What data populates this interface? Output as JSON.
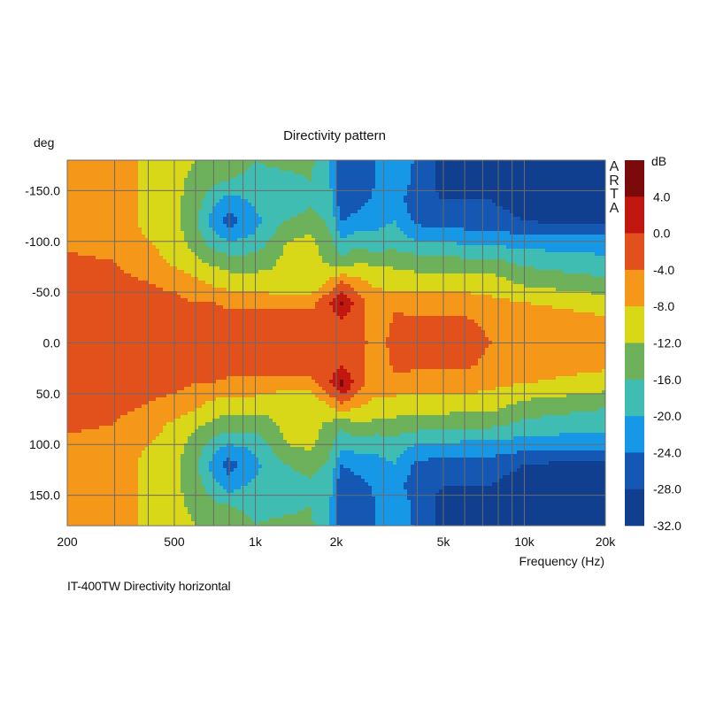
{
  "chart_data": {
    "type": "heatmap",
    "title": "Directivity pattern",
    "ylabel": "deg",
    "xlabel": "Frequency (Hz)",
    "x_scale": "log",
    "xlim": [
      200,
      20000
    ],
    "ylim": [
      -180,
      180
    ],
    "x_ticks": [
      {
        "value": 200,
        "label": "200"
      },
      {
        "value": 500,
        "label": "500"
      },
      {
        "value": 1000,
        "label": "1k"
      },
      {
        "value": 2000,
        "label": "2k"
      },
      {
        "value": 5000,
        "label": "5k"
      },
      {
        "value": 10000,
        "label": "10k"
      },
      {
        "value": 20000,
        "label": "20k"
      }
    ],
    "x_gridlines": [
      200,
      300,
      400,
      500,
      600,
      700,
      800,
      900,
      1000,
      2000,
      3000,
      4000,
      5000,
      6000,
      7000,
      8000,
      9000,
      10000,
      20000
    ],
    "y_ticks": [
      {
        "value": -150,
        "label": "-150.0"
      },
      {
        "value": -100,
        "label": "-100.0"
      },
      {
        "value": -50,
        "label": "-50.0"
      },
      {
        "value": 0,
        "label": "0.0"
      },
      {
        "value": 50,
        "label": "50.0"
      },
      {
        "value": 100,
        "label": "100.0"
      },
      {
        "value": 150,
        "label": "150.0"
      }
    ],
    "y_gridlines": [
      -150,
      -100,
      -50,
      0,
      50,
      100,
      150
    ],
    "grid": true,
    "colorbar": {
      "unit": "dB",
      "levels": [
        {
          "from": 4,
          "to": 8,
          "color": "#7d0a0a",
          "label": ""
        },
        {
          "from": 0,
          "to": 4,
          "color": "#c2170e",
          "label": "4.0"
        },
        {
          "from": -4,
          "to": 0,
          "color": "#e2501b",
          "label": "0.0"
        },
        {
          "from": -8,
          "to": -4,
          "color": "#f59719",
          "label": "-4.0"
        },
        {
          "from": -12,
          "to": -8,
          "color": "#d9d818",
          "label": "-8.0"
        },
        {
          "from": -16,
          "to": -12,
          "color": "#6db25a",
          "label": "-12.0"
        },
        {
          "from": -20,
          "to": -16,
          "color": "#40bdb3",
          "label": "-16.0"
        },
        {
          "from": -24,
          "to": -20,
          "color": "#1798e7",
          "label": "-20.0"
        },
        {
          "from": -28,
          "to": -24,
          "color": "#1458b3",
          "label": "-24.0"
        },
        {
          "from": -32,
          "to": -28,
          "color": "#0f3f8e",
          "label": "-28.0"
        }
      ],
      "bottom_label": "-32.0"
    },
    "z_approx": {
      "note": "approximate SPL (dB) relative to axis, by frequency (Hz) and angle (deg)",
      "frequencies": [
        200,
        300,
        400,
        500,
        600,
        700,
        800,
        1000,
        1300,
        1600,
        1900,
        2100,
        2400,
        2800,
        3300,
        4000,
        5000,
        6000,
        7500,
        10000,
        14000,
        20000
      ],
      "angles": [
        0,
        20,
        40,
        60,
        80,
        100,
        120,
        140,
        160,
        180
      ],
      "values": [
        [
          -2,
          -2,
          -2,
          -3,
          -3,
          -5,
          -5,
          -5,
          -6,
          -6
        ],
        [
          -2,
          -2,
          -2,
          -3,
          -4,
          -6,
          -6,
          -6,
          -6,
          -6
        ],
        [
          -2,
          -2,
          -3,
          -4,
          -6,
          -8,
          -9,
          -9,
          -9,
          -9
        ],
        [
          -2,
          -2,
          -3,
          -5,
          -9,
          -10,
          -11,
          -11,
          -11,
          -10
        ],
        [
          -2,
          -2,
          -4,
          -7,
          -11,
          -14,
          -15,
          -14,
          -13,
          -12
        ],
        [
          -2,
          -2,
          -4,
          -9,
          -13,
          -18,
          -22,
          -19,
          -15,
          -13
        ],
        [
          -2,
          -2,
          -5,
          -10,
          -14,
          -20,
          -26,
          -22,
          -16,
          -14
        ],
        [
          -2,
          -2,
          -5,
          -10,
          -14,
          -19,
          -21,
          -19,
          -17,
          -16
        ],
        [
          -1,
          -1,
          -6,
          -12,
          -11,
          -12,
          -16,
          -19,
          -17,
          -15
        ],
        [
          -1,
          -1,
          -6,
          -12,
          -10,
          -11,
          -14,
          -17,
          -16,
          -15
        ],
        [
          -3,
          -2,
          0,
          -7,
          -13,
          -15,
          -17,
          -19,
          -20,
          -20
        ],
        [
          -3,
          -1,
          5,
          -4,
          -15,
          -19,
          -24,
          -28,
          -27,
          -26
        ],
        [
          -3,
          -2,
          -2,
          -7,
          -12,
          -18,
          -22,
          -26,
          -27,
          -27
        ],
        [
          -5,
          -8,
          -6,
          -9,
          -13,
          -19,
          -21,
          -23,
          -24,
          -24
        ],
        [
          -3,
          -3,
          -5,
          -10,
          -13,
          -18,
          -20,
          -22,
          -20,
          -20
        ],
        [
          -2,
          -3,
          -6,
          -10,
          -14,
          -20,
          -25,
          -27,
          -26,
          -25
        ],
        [
          -3,
          -3,
          -6,
          -10,
          -14,
          -20,
          -26,
          -28,
          -29,
          -29
        ],
        [
          -2,
          -3,
          -6,
          -10,
          -15,
          -21,
          -26,
          -28,
          -29,
          -30
        ],
        [
          -4,
          -5,
          -7,
          -10,
          -15,
          -21,
          -26,
          -28,
          -29,
          -30
        ],
        [
          -4,
          -5,
          -8,
          -13,
          -17,
          -22,
          -28,
          -30,
          -30,
          -30
        ],
        [
          -5,
          -6,
          -9,
          -14,
          -18,
          -22,
          -29,
          -30,
          -30,
          -30
        ],
        [
          -5,
          -7,
          -10,
          -15,
          -19,
          -22,
          -29,
          -30,
          -30,
          -30
        ]
      ]
    }
  },
  "brand_text": "A R T A",
  "caption": "IT-400TW Directivity horizontal"
}
